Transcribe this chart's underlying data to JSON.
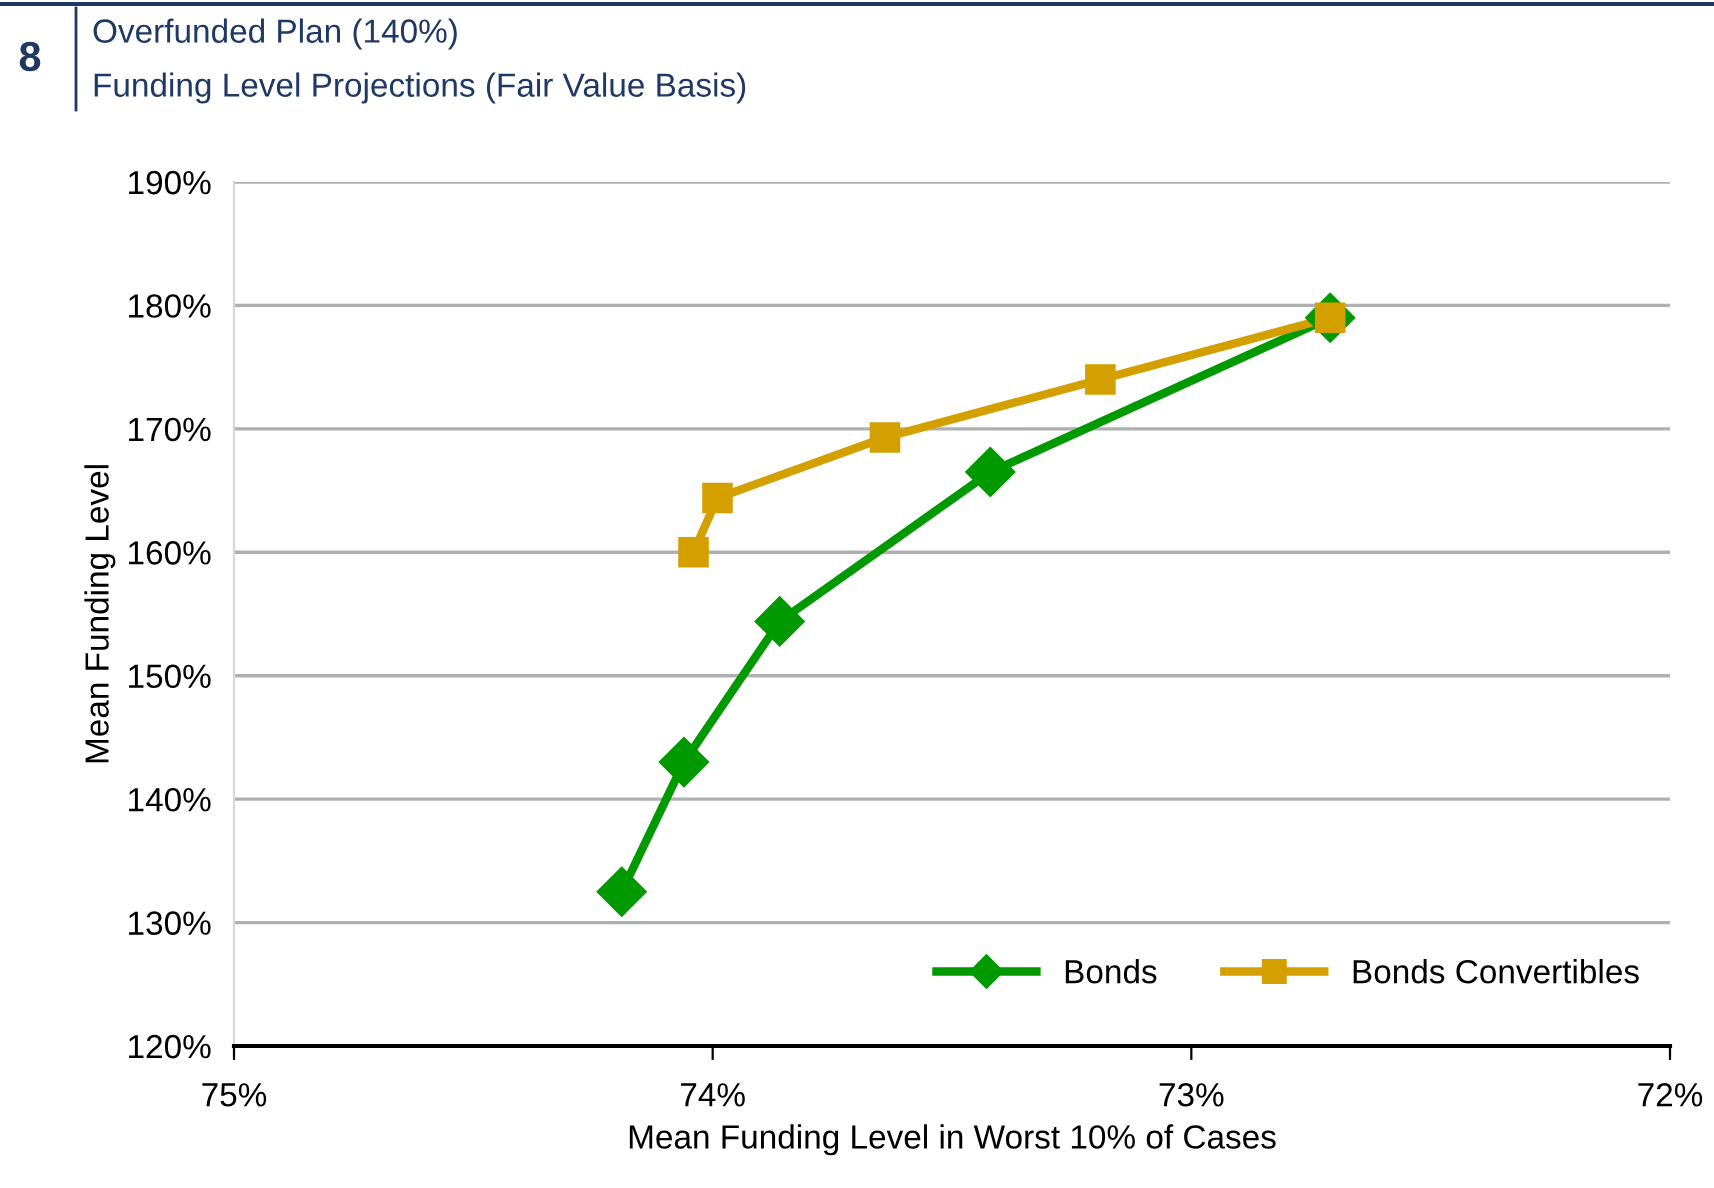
{
  "chart_data": {
    "type": "line",
    "title": "Overfunded Plan (140%)",
    "subtitle": "Funding Level Projections (Fair Value Basis)",
    "annotations": [
      "8"
    ],
    "xlabel": "Mean Funding Level in Worst 10% of Cases",
    "ylabel": "Mean Funding Level",
    "series": [
      {
        "name": "Bonds",
        "color": "#009900",
        "marker": "diamond",
        "x": [
          74.19,
          74.06,
          73.86,
          73.42,
          72.71
        ],
        "values": [
          132.5,
          143.0,
          154.4,
          166.5,
          179.0
        ]
      },
      {
        "name": "Bonds Convertibles",
        "color": "#d4a000",
        "marker": "square",
        "x": [
          74.04,
          73.99,
          73.64,
          73.19,
          72.71
        ],
        "values": [
          160.0,
          164.4,
          169.3,
          174.0,
          179.0
        ]
      }
    ],
    "xlim": [
      75,
      72
    ],
    "xticks": [
      {
        "value": 75,
        "label": "75%"
      },
      {
        "value": 74,
        "label": "74%"
      },
      {
        "value": 73,
        "label": "73%"
      },
      {
        "value": 72,
        "label": "72%"
      }
    ],
    "ylim": [
      120,
      190
    ],
    "yticks": [
      {
        "value": 120,
        "label": "120%"
      },
      {
        "value": 130,
        "label": "130%"
      },
      {
        "value": 140,
        "label": "140%"
      },
      {
        "value": 150,
        "label": "150%"
      },
      {
        "value": 160,
        "label": "160%"
      },
      {
        "value": 170,
        "label": "170%"
      },
      {
        "value": 180,
        "label": "180%"
      },
      {
        "value": 190,
        "label": "190%"
      }
    ],
    "grid": "y",
    "legend": "bottom right",
    "line_style": "solid"
  }
}
